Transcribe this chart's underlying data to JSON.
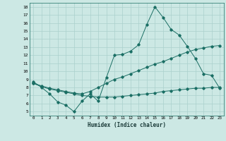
{
  "xlabel": "Humidex (Indice chaleur)",
  "bg_color": "#cce8e4",
  "grid_color": "#aad0cc",
  "line_color": "#1a6e64",
  "xlim": [
    -0.5,
    23.5
  ],
  "ylim": [
    4.5,
    18.5
  ],
  "yticks": [
    5,
    6,
    7,
    8,
    9,
    10,
    11,
    12,
    13,
    14,
    15,
    16,
    17,
    18
  ],
  "xticks": [
    0,
    1,
    2,
    3,
    4,
    5,
    6,
    7,
    8,
    9,
    10,
    11,
    12,
    13,
    14,
    15,
    16,
    17,
    18,
    19,
    20,
    21,
    22,
    23
  ],
  "line1_x": [
    0,
    1,
    2,
    3,
    4,
    5,
    6,
    7,
    8,
    9,
    10,
    11,
    12,
    13,
    14,
    15,
    16,
    17,
    18,
    19,
    20,
    21,
    22,
    23
  ],
  "line1_y": [
    8.7,
    8.0,
    7.2,
    6.2,
    5.8,
    5.0,
    6.3,
    7.2,
    6.3,
    9.2,
    12.0,
    12.1,
    12.5,
    13.3,
    15.8,
    18.0,
    16.7,
    15.2,
    14.5,
    13.1,
    11.6,
    9.7,
    9.5,
    7.9
  ],
  "line2_x": [
    0,
    1,
    2,
    3,
    4,
    5,
    6,
    7,
    8,
    9,
    10,
    11,
    12,
    13,
    14,
    15,
    16,
    17,
    18,
    19,
    20,
    21,
    22,
    23
  ],
  "line2_y": [
    8.5,
    8.2,
    7.9,
    7.7,
    7.5,
    7.3,
    7.2,
    7.5,
    8.0,
    8.5,
    9.0,
    9.3,
    9.7,
    10.1,
    10.5,
    10.9,
    11.2,
    11.6,
    12.0,
    12.4,
    12.7,
    12.9,
    13.1,
    13.2
  ],
  "line3_x": [
    0,
    1,
    2,
    3,
    4,
    5,
    6,
    7,
    8,
    9,
    10,
    11,
    12,
    13,
    14,
    15,
    16,
    17,
    18,
    19,
    20,
    21,
    22,
    23
  ],
  "line3_y": [
    8.5,
    8.1,
    7.8,
    7.6,
    7.4,
    7.2,
    7.0,
    6.9,
    6.8,
    6.8,
    6.8,
    6.9,
    7.0,
    7.1,
    7.2,
    7.3,
    7.5,
    7.6,
    7.7,
    7.8,
    7.9,
    7.9,
    8.0,
    8.0
  ]
}
